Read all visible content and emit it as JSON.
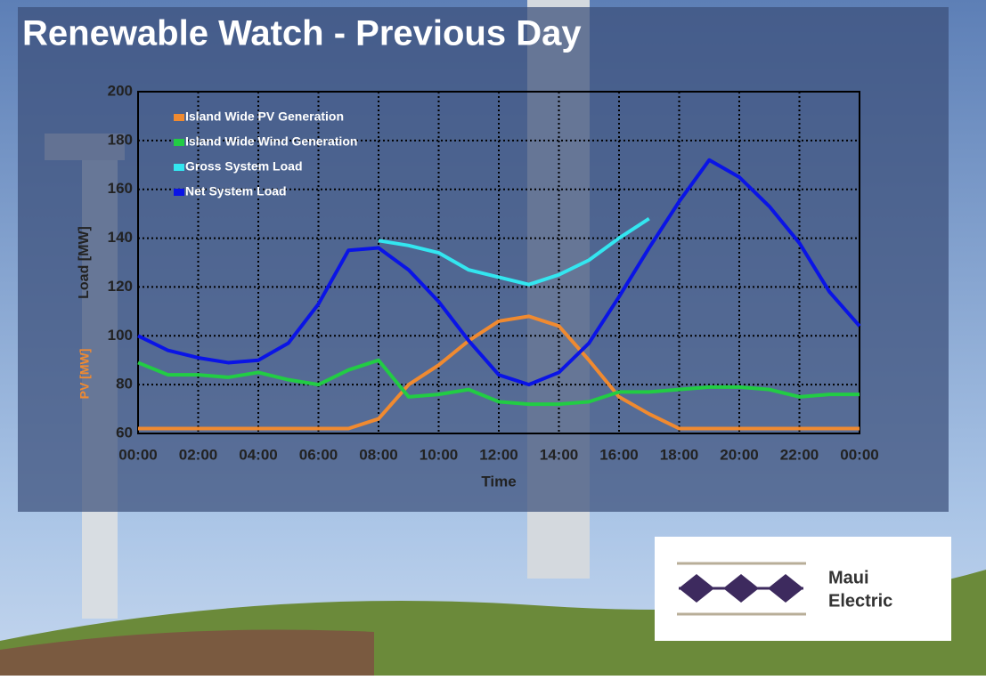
{
  "chart_data": {
    "type": "line",
    "title": "Renewable Watch - Previous Day",
    "x_label": "Time",
    "y_label": "Load [MW]",
    "y2_label": "PV [MW]",
    "x": [
      0,
      1,
      2,
      3,
      4,
      5,
      6,
      7,
      8,
      9,
      10,
      11,
      12,
      13,
      14,
      15,
      16,
      17,
      18,
      19,
      20,
      21,
      22,
      23,
      24
    ],
    "series": [
      {
        "name": "Island Wide PV Generation",
        "color": "#f08a30",
        "values": [
          62,
          62,
          62,
          62,
          62,
          62,
          62,
          62,
          66,
          80,
          88,
          98,
          106,
          108,
          104,
          90,
          75,
          68,
          62,
          62,
          62,
          62,
          62,
          62,
          62
        ]
      },
      {
        "name": "Island Wide Wind Generation",
        "color": "#22cc44",
        "values": [
          89,
          84,
          84,
          83,
          85,
          82,
          80,
          86,
          90,
          75,
          76,
          78,
          73,
          72,
          72,
          73,
          77,
          77,
          78,
          79,
          79,
          78,
          75,
          76,
          76
        ]
      },
      {
        "name": "Gross System Load",
        "color": "#33e6f0",
        "values": [
          null,
          null,
          null,
          null,
          null,
          null,
          null,
          null,
          139,
          137,
          134,
          127,
          124,
          121,
          125,
          131,
          140,
          148,
          null,
          null,
          null,
          null,
          null,
          null,
          null
        ]
      },
      {
        "name": "Net System Load",
        "color": "#0a14e6",
        "values": [
          100,
          94,
          91,
          89,
          90,
          97,
          113,
          135,
          136,
          127,
          114,
          98,
          84,
          80,
          85,
          97,
          116,
          136,
          155,
          172,
          165,
          153,
          138,
          118,
          104
        ]
      }
    ],
    "xlim": [
      0,
      24
    ],
    "xticks": [
      {
        "value": 0,
        "label": "00:00"
      },
      {
        "value": 2,
        "label": "02:00"
      },
      {
        "value": 4,
        "label": "04:00"
      },
      {
        "value": 6,
        "label": "06:00"
      },
      {
        "value": 8,
        "label": "08:00"
      },
      {
        "value": 10,
        "label": "10:00"
      },
      {
        "value": 12,
        "label": "12:00"
      },
      {
        "value": 14,
        "label": "14:00"
      },
      {
        "value": 16,
        "label": "16:00"
      },
      {
        "value": 18,
        "label": "18:00"
      },
      {
        "value": 20,
        "label": "20:00"
      },
      {
        "value": 22,
        "label": "22:00"
      },
      {
        "value": 24,
        "label": "00:00"
      }
    ],
    "ylim": [
      60,
      200
    ],
    "yticks": [
      60,
      80,
      100,
      120,
      140,
      160,
      180,
      200
    ],
    "grid": true,
    "legend": "upper left"
  },
  "logo": {
    "line1": "Maui",
    "line2": "Electric"
  }
}
